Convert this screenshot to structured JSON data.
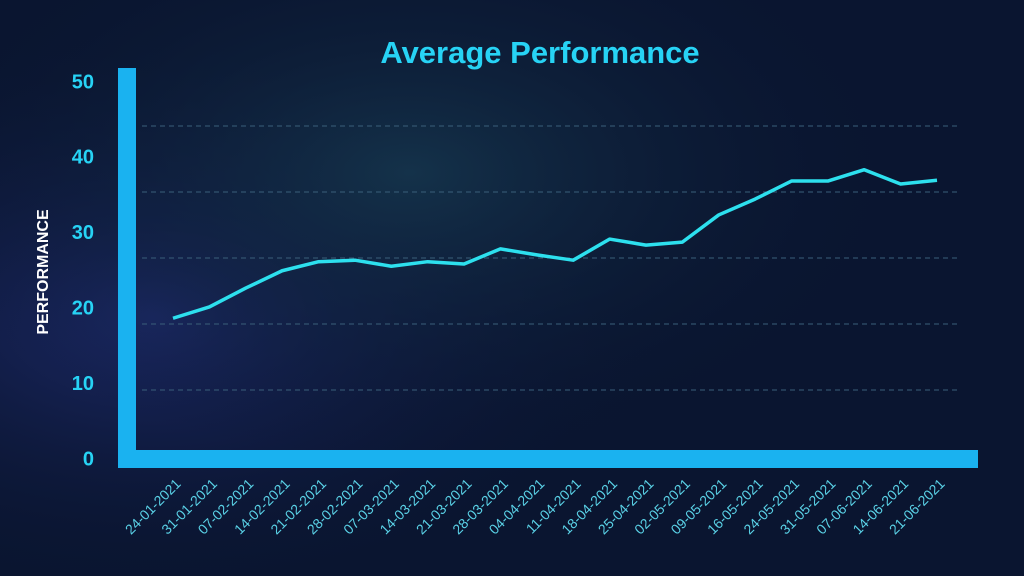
{
  "chart_data": {
    "type": "line",
    "title": "Average Performance",
    "y_label": "PERFORMANCE",
    "categories": [
      "24-01-2021",
      "31-01-2021",
      "07-02-2021",
      "14-02-2021",
      "21-02-2021",
      "28-02-2021",
      "07-03-2021",
      "14-03-2021",
      "21-03-2021",
      "28-03-2021",
      "04-04-2021",
      "11-04-2021",
      "18-04-2021",
      "25-04-2021",
      "02-05-2021",
      "09-05-2021",
      "16-05-2021",
      "24-05-2021",
      "31-05-2021",
      "07-06-2021",
      "14-06-2021",
      "21-06-2021"
    ],
    "values": [
      18.8,
      20.3,
      22.8,
      25.1,
      26.3,
      26.5,
      25.7,
      26.3,
      26.0,
      28.0,
      27.2,
      26.5,
      29.3,
      28.5,
      28.9,
      32.5,
      34.6,
      37.0,
      37.0,
      38.5,
      36.6,
      37.1
    ],
    "color": "#2de0ee",
    "ylim": [
      0,
      50
    ],
    "yticks": [
      0,
      10,
      20,
      30,
      40,
      50
    ]
  }
}
